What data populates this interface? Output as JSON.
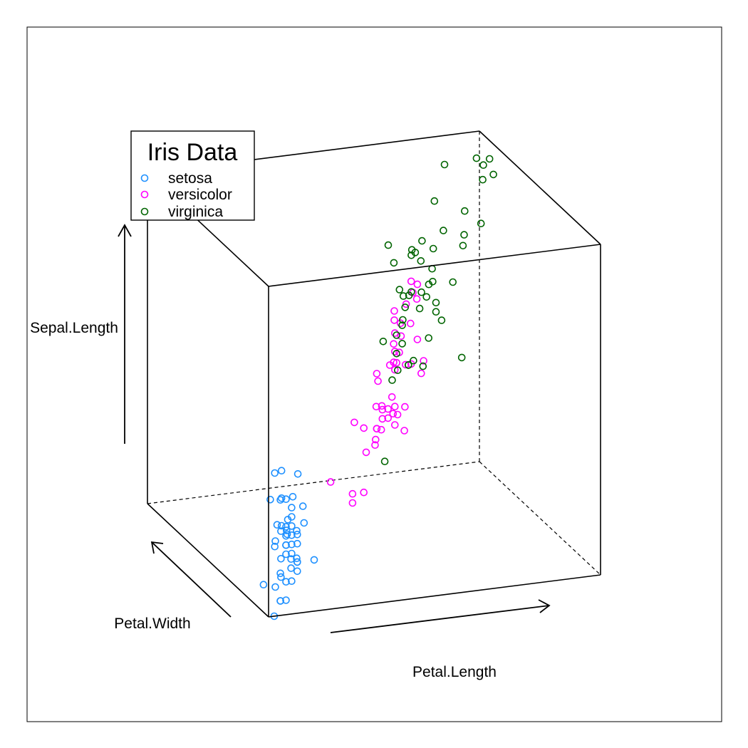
{
  "chart_data": {
    "type": "scatter",
    "projection": "3d",
    "title": "",
    "legend": {
      "title": "Iris Data",
      "placement": "top-left",
      "entries": [
        "setosa",
        "versicolor",
        "virginica"
      ]
    },
    "axes": {
      "x": {
        "label": "Petal.Length",
        "range": [
          1.0,
          6.9
        ]
      },
      "y": {
        "label": "Petal.Width",
        "range": [
          0.1,
          2.5
        ]
      },
      "z": {
        "label": "Sepal.Length",
        "range": [
          4.3,
          7.9
        ]
      }
    },
    "grid": false,
    "series": [
      {
        "name": "setosa",
        "color": "#1E90FF",
        "points": [
          [
            1.4,
            0.2,
            5.1
          ],
          [
            1.4,
            0.2,
            4.9
          ],
          [
            1.3,
            0.2,
            4.7
          ],
          [
            1.5,
            0.2,
            4.6
          ],
          [
            1.4,
            0.2,
            5.0
          ],
          [
            1.7,
            0.4,
            5.4
          ],
          [
            1.4,
            0.3,
            4.6
          ],
          [
            1.5,
            0.2,
            5.0
          ],
          [
            1.4,
            0.2,
            4.4
          ],
          [
            1.5,
            0.1,
            4.9
          ],
          [
            1.5,
            0.2,
            5.4
          ],
          [
            1.6,
            0.2,
            4.8
          ],
          [
            1.4,
            0.1,
            4.8
          ],
          [
            1.1,
            0.1,
            4.3
          ],
          [
            1.2,
            0.2,
            5.8
          ],
          [
            1.5,
            0.4,
            5.7
          ],
          [
            1.3,
            0.4,
            5.4
          ],
          [
            1.4,
            0.3,
            5.1
          ],
          [
            1.7,
            0.3,
            5.7
          ],
          [
            1.5,
            0.3,
            5.1
          ],
          [
            1.7,
            0.2,
            5.4
          ],
          [
            1.5,
            0.4,
            5.1
          ],
          [
            1.0,
            0.2,
            4.6
          ],
          [
            1.7,
            0.5,
            5.1
          ],
          [
            1.9,
            0.2,
            4.8
          ],
          [
            1.6,
            0.2,
            5.0
          ],
          [
            1.6,
            0.4,
            5.0
          ],
          [
            1.5,
            0.2,
            5.2
          ],
          [
            1.4,
            0.2,
            5.2
          ],
          [
            1.6,
            0.2,
            4.7
          ],
          [
            1.6,
            0.2,
            4.8
          ],
          [
            1.5,
            0.4,
            5.4
          ],
          [
            1.5,
            0.1,
            5.2
          ],
          [
            1.4,
            0.2,
            5.5
          ],
          [
            1.5,
            0.2,
            4.9
          ],
          [
            1.2,
            0.2,
            5.0
          ],
          [
            1.3,
            0.2,
            5.5
          ],
          [
            1.4,
            0.1,
            4.9
          ],
          [
            1.3,
            0.2,
            4.4
          ],
          [
            1.5,
            0.2,
            5.1
          ],
          [
            1.3,
            0.3,
            5.0
          ],
          [
            1.3,
            0.3,
            4.5
          ],
          [
            1.3,
            0.2,
            4.4
          ],
          [
            1.6,
            0.6,
            5.0
          ],
          [
            1.9,
            0.4,
            5.1
          ],
          [
            1.4,
            0.3,
            4.8
          ],
          [
            1.6,
            0.2,
            5.1
          ],
          [
            1.4,
            0.2,
            4.6
          ],
          [
            1.5,
            0.2,
            5.3
          ],
          [
            1.4,
            0.2,
            5.0
          ]
        ]
      },
      {
        "name": "versicolor",
        "color": "#FF00FF",
        "points": [
          [
            4.7,
            1.4,
            7.0
          ],
          [
            4.5,
            1.5,
            6.4
          ],
          [
            4.9,
            1.5,
            6.9
          ],
          [
            4.0,
            1.3,
            5.5
          ],
          [
            4.6,
            1.5,
            6.5
          ],
          [
            4.5,
            1.3,
            5.7
          ],
          [
            4.7,
            1.6,
            6.3
          ],
          [
            3.3,
            1.0,
            4.9
          ],
          [
            4.6,
            1.3,
            6.6
          ],
          [
            3.9,
            1.4,
            5.2
          ],
          [
            3.5,
            1.0,
            5.0
          ],
          [
            4.2,
            1.5,
            5.9
          ],
          [
            4.0,
            1.0,
            6.0
          ],
          [
            4.7,
            1.4,
            6.1
          ],
          [
            3.6,
            1.3,
            5.6
          ],
          [
            4.4,
            1.4,
            6.7
          ],
          [
            4.5,
            1.5,
            5.6
          ],
          [
            4.1,
            1.0,
            5.8
          ],
          [
            4.5,
            1.5,
            6.2
          ],
          [
            3.9,
            1.1,
            5.6
          ],
          [
            4.8,
            1.8,
            5.9
          ],
          [
            4.0,
            1.3,
            6.1
          ],
          [
            4.9,
            1.5,
            6.3
          ],
          [
            4.7,
            1.2,
            6.1
          ],
          [
            4.3,
            1.3,
            6.4
          ],
          [
            4.4,
            1.4,
            6.6
          ],
          [
            4.8,
            1.4,
            6.8
          ],
          [
            5.0,
            1.7,
            6.7
          ],
          [
            4.5,
            1.5,
            6.0
          ],
          [
            3.5,
            1.0,
            5.7
          ],
          [
            3.8,
            1.1,
            5.5
          ],
          [
            3.7,
            1.0,
            5.5
          ],
          [
            3.9,
            1.2,
            5.8
          ],
          [
            5.1,
            1.6,
            6.0
          ],
          [
            4.5,
            1.5,
            5.4
          ],
          [
            4.5,
            1.6,
            6.0
          ],
          [
            4.7,
            1.5,
            6.7
          ],
          [
            4.4,
            1.3,
            6.3
          ],
          [
            4.1,
            1.3,
            5.6
          ],
          [
            4.0,
            1.3,
            5.5
          ],
          [
            4.4,
            1.2,
            5.5
          ],
          [
            4.6,
            1.4,
            6.1
          ],
          [
            4.0,
            1.2,
            5.8
          ],
          [
            3.3,
            1.0,
            5.0
          ],
          [
            4.2,
            1.3,
            5.6
          ],
          [
            4.2,
            1.2,
            5.7
          ],
          [
            4.2,
            1.3,
            5.7
          ],
          [
            4.3,
            1.3,
            6.2
          ],
          [
            3.0,
            1.1,
            5.1
          ],
          [
            4.1,
            1.3,
            5.7
          ]
        ]
      },
      {
        "name": "virginica",
        "color": "#006400",
        "points": [
          [
            6.0,
            2.5,
            6.3
          ],
          [
            5.1,
            1.9,
            5.8
          ],
          [
            5.9,
            2.1,
            7.1
          ],
          [
            5.6,
            1.8,
            6.3
          ],
          [
            5.8,
            2.2,
            6.5
          ],
          [
            6.6,
            2.1,
            7.6
          ],
          [
            4.5,
            1.7,
            4.9
          ],
          [
            6.3,
            1.8,
            7.3
          ],
          [
            5.8,
            1.8,
            6.7
          ],
          [
            6.1,
            2.5,
            7.2
          ],
          [
            5.1,
            2.0,
            6.5
          ],
          [
            5.3,
            1.9,
            6.4
          ],
          [
            5.5,
            2.1,
            6.8
          ],
          [
            5.0,
            2.0,
            5.7
          ],
          [
            5.1,
            2.4,
            5.8
          ],
          [
            5.3,
            2.3,
            6.4
          ],
          [
            5.5,
            1.8,
            6.5
          ],
          [
            6.7,
            2.2,
            7.7
          ],
          [
            6.9,
            2.3,
            7.7
          ],
          [
            5.0,
            1.5,
            6.0
          ],
          [
            5.7,
            2.3,
            6.9
          ],
          [
            4.9,
            2.0,
            5.6
          ],
          [
            6.7,
            2.0,
            7.7
          ],
          [
            4.9,
            1.8,
            6.3
          ],
          [
            5.7,
            2.1,
            6.7
          ],
          [
            6.0,
            1.8,
            7.2
          ],
          [
            4.8,
            1.8,
            6.2
          ],
          [
            4.9,
            1.8,
            6.1
          ],
          [
            5.6,
            2.1,
            6.4
          ],
          [
            5.8,
            1.6,
            7.2
          ],
          [
            6.1,
            1.9,
            7.4
          ],
          [
            6.4,
            2.0,
            7.9
          ],
          [
            5.6,
            2.2,
            6.4
          ],
          [
            5.1,
            1.5,
            6.3
          ],
          [
            5.6,
            1.4,
            6.1
          ],
          [
            6.1,
            2.3,
            7.7
          ],
          [
            5.6,
            2.4,
            6.3
          ],
          [
            5.5,
            1.8,
            6.4
          ],
          [
            4.8,
            1.8,
            6.0
          ],
          [
            5.4,
            2.1,
            6.9
          ],
          [
            5.6,
            2.4,
            6.7
          ],
          [
            5.1,
            2.3,
            6.9
          ],
          [
            5.1,
            1.9,
            5.8
          ],
          [
            5.9,
            2.3,
            6.8
          ],
          [
            5.7,
            2.5,
            6.7
          ],
          [
            5.2,
            2.3,
            6.7
          ],
          [
            5.0,
            1.9,
            6.3
          ],
          [
            5.2,
            2.0,
            6.5
          ],
          [
            5.4,
            2.3,
            6.2
          ],
          [
            5.1,
            1.8,
            5.9
          ]
        ]
      }
    ]
  }
}
